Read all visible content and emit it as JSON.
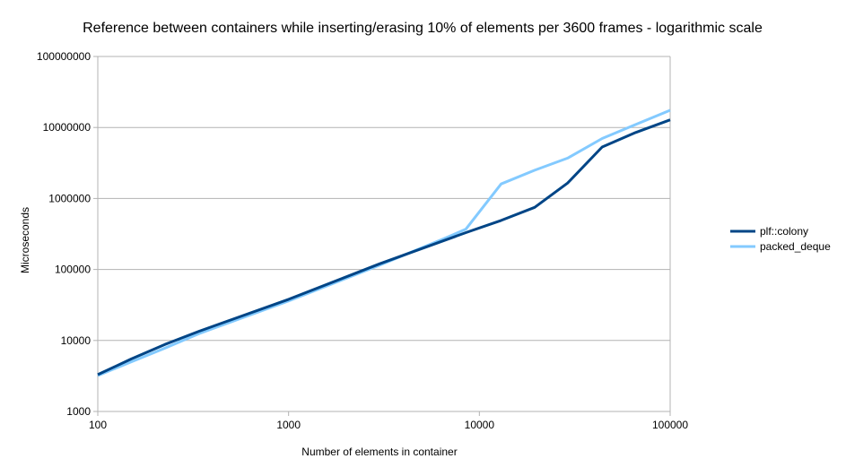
{
  "chart_data": {
    "type": "line",
    "title": "Reference between containers while inserting/erasing 10% of elements per 3600 frames - logarithmic scale",
    "xlabel": "Number of elements in container",
    "ylabel": "Microseconds",
    "x_scale": "log",
    "y_scale": "log",
    "xlim": [
      100,
      100000
    ],
    "ylim": [
      1000,
      100000000
    ],
    "x_ticks": [
      "100",
      "1000",
      "10000",
      "100000"
    ],
    "y_ticks": [
      "1000",
      "10000",
      "100000",
      "1000000",
      "10000000",
      "100000000"
    ],
    "grid": "horizontal",
    "legend_position": "right",
    "series": [
      {
        "name": "plf::colony",
        "color": "#004586",
        "points": [
          [
            100,
            3300
          ],
          [
            150,
            5500
          ],
          [
            225,
            8800
          ],
          [
            340,
            13500
          ],
          [
            1000,
            38000
          ],
          [
            3000,
            120000
          ],
          [
            8500,
            330000
          ],
          [
            13000,
            490000
          ],
          [
            19500,
            750000
          ],
          [
            29000,
            1650000
          ],
          [
            44000,
            5300000
          ],
          [
            66000,
            8500000
          ],
          [
            100000,
            12800000
          ]
        ]
      },
      {
        "name": "packed_deque",
        "color": "#83caff",
        "points": [
          [
            100,
            3200
          ],
          [
            150,
            5000
          ],
          [
            225,
            7800
          ],
          [
            340,
            12500
          ],
          [
            1000,
            36000
          ],
          [
            3000,
            115000
          ],
          [
            6500,
            270000
          ],
          [
            8500,
            370000
          ],
          [
            13000,
            1600000
          ],
          [
            19500,
            2500000
          ],
          [
            29000,
            3700000
          ],
          [
            44000,
            7000000
          ],
          [
            66000,
            11000000
          ],
          [
            100000,
            17500000
          ]
        ]
      }
    ]
  }
}
